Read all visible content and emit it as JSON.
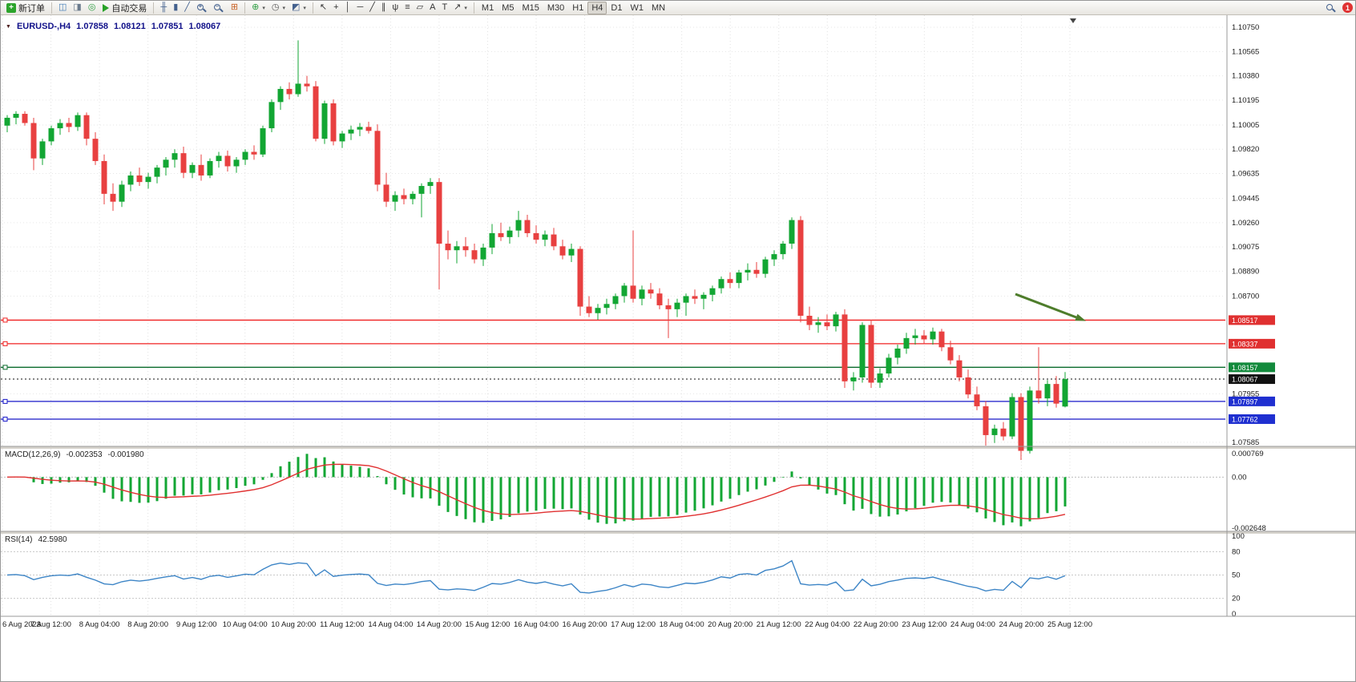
{
  "toolbar": {
    "new_order": "新订单",
    "autotrade": "自动交易",
    "timeframes": [
      "M1",
      "M5",
      "M15",
      "M30",
      "H1",
      "H4",
      "D1",
      "W1",
      "MN"
    ],
    "active_timeframe": "H4",
    "left_icons": [
      {
        "name": "new-chart-icon",
        "glyph": "◫",
        "color": "#3c78b4"
      },
      {
        "name": "profiles-icon",
        "glyph": "◨",
        "color": "#6b7b8d"
      },
      {
        "name": "refresh-icon",
        "glyph": "◎",
        "color": "#2f9e44"
      }
    ],
    "chart_type_icons": [
      {
        "name": "ohlc-bars-icon",
        "glyph": "╫",
        "color": "#44618e"
      },
      {
        "name": "candlestick-icon",
        "glyph": "▮",
        "color": "#44618e"
      },
      {
        "name": "line-chart-icon",
        "glyph": "╱",
        "color": "#44618e"
      }
    ],
    "tile_icon": {
      "name": "tile-windows-icon",
      "glyph": "⊞",
      "color": "#c9652a"
    },
    "dropdown_icons": [
      {
        "name": "indicators-icon",
        "glyph": "⊕",
        "color": "#2f9e44",
        "caret": true
      },
      {
        "name": "clock-icon",
        "glyph": "◷",
        "color": "#555555",
        "caret": true
      },
      {
        "name": "templates-icon",
        "glyph": "◩",
        "color": "#44618e",
        "caret": true
      }
    ],
    "drawing_icons": [
      {
        "name": "cursor-icon",
        "glyph": "↖",
        "color": "#333333"
      },
      {
        "name": "crosshair-icon",
        "glyph": "+",
        "color": "#333333"
      },
      {
        "name": "vertical-line-icon",
        "glyph": "│",
        "color": "#333333"
      },
      {
        "name": "horizontal-line-icon",
        "glyph": "─",
        "color": "#333333"
      },
      {
        "name": "trendline-icon",
        "glyph": "╱",
        "color": "#333333"
      },
      {
        "name": "channel-icon",
        "glyph": "∥",
        "color": "#333333"
      },
      {
        "name": "pitchfork-icon",
        "glyph": "ψ",
        "color": "#333333"
      },
      {
        "name": "fibonacci-icon",
        "glyph": "≡",
        "color": "#333333"
      },
      {
        "name": "shapes-icon",
        "glyph": "▱",
        "color": "#333333"
      },
      {
        "name": "text-icon",
        "glyph": "A",
        "color": "#333333"
      },
      {
        "name": "label-icon",
        "glyph": "T",
        "color": "#333333"
      },
      {
        "name": "arrows-icon",
        "glyph": "↗",
        "color": "#333333",
        "caret": true
      }
    ],
    "notification_count": "1"
  },
  "chart": {
    "symbol_marker": "▼",
    "symbol": "EURUSD-,H4",
    "open": "1.07858",
    "high": "1.08121",
    "low": "1.07851",
    "close": "1.08067"
  },
  "price_axis": {
    "labels": [
      "1.10750",
      "1.10565",
      "1.10380",
      "1.10195",
      "1.10005",
      "1.09820",
      "1.09635",
      "1.09445",
      "1.09260",
      "1.09075",
      "1.08890",
      "1.08700",
      "1.07955",
      "1.07585"
    ]
  },
  "levels": [
    {
      "price": 1.08517,
      "label": "1.08517",
      "color": "#f02020",
      "tag_bg": "#e03030",
      "style": "solid"
    },
    {
      "price": 1.08337,
      "label": "1.08337",
      "color": "#f02020",
      "tag_bg": "#e03030",
      "style": "solid"
    },
    {
      "price": 1.08157,
      "label": "1.08157",
      "color": "#0b6b2d",
      "tag_bg": "#128a3c",
      "style": "solid"
    },
    {
      "price": 1.08067,
      "label": "1.08067",
      "color": "#111111",
      "tag_bg": "#111111",
      "style": "dotted",
      "is_price_line": true
    },
    {
      "price": 1.07897,
      "label": "1.07897",
      "color": "#1818c8",
      "tag_bg": "#1f2fd0",
      "style": "solid"
    },
    {
      "price": 1.07762,
      "label": "1.07762",
      "color": "#1818c8",
      "tag_bg": "#1f2fd0",
      "style": "solid"
    }
  ],
  "annotation_arrow": {
    "color": "#4e7d2b"
  },
  "macd": {
    "title": "MACD(12,26,9)",
    "value1": "-0.002353",
    "value2": "-0.001980",
    "axis_max": "0.000769",
    "axis_zero": "0.00",
    "axis_min": "-0.002648",
    "histogram_color": "#12a633",
    "signal_color": "#e03030"
  },
  "rsi": {
    "title": "RSI(14)",
    "value": "42.5980",
    "axis": [
      "100",
      "80",
      "50",
      "20",
      "0"
    ],
    "levels": [
      80,
      50,
      20
    ],
    "line_color": "#3d85c6"
  },
  "time_axis": [
    "6 Aug 2023",
    "7 Aug 12:00",
    "8 Aug 04:00",
    "8 Aug 20:00",
    "9 Aug 12:00",
    "10 Aug 04:00",
    "10 Aug 20:00",
    "11 Aug 12:00",
    "14 Aug 04:00",
    "14 Aug 20:00",
    "15 Aug 12:00",
    "16 Aug 04:00",
    "16 Aug 20:00",
    "17 Aug 12:00",
    "18 Aug 04:00",
    "20 Aug 20:00",
    "21 Aug 12:00",
    "22 Aug 04:00",
    "22 Aug 20:00",
    "23 Aug 12:00",
    "24 Aug 04:00",
    "24 Aug 20:00",
    "25 Aug 12:00"
  ],
  "chart_data": {
    "type": "candlestick",
    "symbol": "EURUSD",
    "timeframe": "H4",
    "up_color": "#12a633",
    "down_color": "#e84040",
    "price_range": {
      "max": 1.10842,
      "min": 1.07554
    },
    "current_ohlc": [
      1.07858,
      1.08121,
      1.07851,
      1.08067
    ],
    "candles": [
      [
        1.1,
        1.1008,
        1.0995,
        1.1006
      ],
      [
        1.1006,
        1.1011,
        1.1001,
        1.1009
      ],
      [
        1.1009,
        1.1011,
        1.1,
        1.1002
      ],
      [
        1.1002,
        1.1006,
        1.0966,
        1.0975
      ],
      [
        1.0975,
        1.099,
        1.097,
        1.0988
      ],
      [
        1.0988,
        1.1,
        1.0985,
        1.0998
      ],
      [
        1.0998,
        1.1005,
        1.0993,
        1.1002
      ],
      [
        1.1002,
        1.1006,
        1.0995,
        1.0999
      ],
      [
        1.0999,
        1.101,
        1.0996,
        1.1008
      ],
      [
        1.1008,
        1.101,
        1.0985,
        1.099
      ],
      [
        1.099,
        1.0995,
        1.097,
        1.0973
      ],
      [
        1.0973,
        1.0978,
        1.094,
        1.0948
      ],
      [
        1.0948,
        1.0956,
        1.0935,
        1.0942
      ],
      [
        1.0942,
        1.0958,
        1.0938,
        1.0955
      ],
      [
        1.0955,
        1.0965,
        1.095,
        1.0962
      ],
      [
        1.0962,
        1.0968,
        1.0954,
        1.0957
      ],
      [
        1.0957,
        1.0964,
        1.0952,
        1.0961
      ],
      [
        1.0961,
        1.097,
        1.0956,
        1.0968
      ],
      [
        1.0968,
        1.0976,
        1.0962,
        1.0974
      ],
      [
        1.0974,
        1.0982,
        1.0968,
        1.0979
      ],
      [
        1.0979,
        1.0984,
        1.096,
        1.0964
      ],
      [
        1.0964,
        1.0972,
        1.096,
        1.097
      ],
      [
        1.097,
        1.0978,
        1.0958,
        1.0962
      ],
      [
        1.0962,
        1.0975,
        1.096,
        1.0973
      ],
      [
        1.0973,
        1.098,
        1.0968,
        1.0977
      ],
      [
        1.0977,
        1.0981,
        1.0965,
        1.0969
      ],
      [
        1.0969,
        1.0976,
        1.0964,
        1.0974
      ],
      [
        1.0974,
        1.0982,
        1.097,
        1.098
      ],
      [
        1.098,
        1.0985,
        1.0974,
        1.0978
      ],
      [
        1.0978,
        1.1,
        1.0976,
        1.0998
      ],
      [
        1.0998,
        1.102,
        1.0995,
        1.1018
      ],
      [
        1.1018,
        1.103,
        1.1012,
        1.1028
      ],
      [
        1.1028,
        1.1033,
        1.102,
        1.1024
      ],
      [
        1.1024,
        1.1065,
        1.1022,
        1.1032
      ],
      [
        1.1032,
        1.1038,
        1.1026,
        1.103
      ],
      [
        1.103,
        1.1034,
        1.0988,
        1.099
      ],
      [
        1.099,
        1.1019,
        1.0986,
        1.1017
      ],
      [
        1.1017,
        1.102,
        1.0985,
        1.0988
      ],
      [
        1.0988,
        1.0996,
        1.0983,
        1.0994
      ],
      [
        1.0994,
        1.1,
        1.0989,
        1.0997
      ],
      [
        1.0997,
        1.1002,
        1.0992,
        1.0999
      ],
      [
        1.0999,
        1.1003,
        1.0994,
        1.0996
      ],
      [
        1.0996,
        1.1001,
        1.095,
        1.0955
      ],
      [
        1.0955,
        1.0964,
        1.0938,
        1.0942
      ],
      [
        1.0942,
        1.095,
        1.0935,
        1.0947
      ],
      [
        1.0947,
        1.0952,
        1.094,
        1.0944
      ],
      [
        1.0944,
        1.095,
        1.094,
        1.0948
      ],
      [
        1.0948,
        1.0956,
        1.093,
        1.0954
      ],
      [
        1.0954,
        1.096,
        1.0948,
        1.0957
      ],
      [
        1.0957,
        1.096,
        1.0875,
        1.091
      ],
      [
        1.091,
        1.092,
        1.0898,
        1.0905
      ],
      [
        1.0905,
        1.0912,
        1.0895,
        1.0908
      ],
      [
        1.0908,
        1.0915,
        1.09,
        1.0905
      ],
      [
        1.0905,
        1.091,
        1.0895,
        1.0898
      ],
      [
        1.0898,
        1.091,
        1.0893,
        1.0907
      ],
      [
        1.0907,
        1.0925,
        1.0902,
        1.0918
      ],
      [
        1.0918,
        1.0926,
        1.0912,
        1.0915
      ],
      [
        1.0915,
        1.0923,
        1.091,
        1.092
      ],
      [
        1.092,
        1.0935,
        1.0915,
        1.0928
      ],
      [
        1.0928,
        1.0932,
        1.0915,
        1.0918
      ],
      [
        1.0918,
        1.0924,
        1.091,
        1.0913
      ],
      [
        1.0913,
        1.092,
        1.0908,
        1.0917
      ],
      [
        1.0917,
        1.0922,
        1.0905,
        1.0908
      ],
      [
        1.0908,
        1.0913,
        1.0898,
        1.0901
      ],
      [
        1.0901,
        1.091,
        1.0896,
        1.0906
      ],
      [
        1.0906,
        1.0908,
        1.0855,
        1.0862
      ],
      [
        1.0862,
        1.087,
        1.0854,
        1.0857
      ],
      [
        1.0857,
        1.0864,
        1.0852,
        1.0861
      ],
      [
        1.0861,
        1.0868,
        1.0856,
        1.0864
      ],
      [
        1.0864,
        1.0872,
        1.086,
        1.087
      ],
      [
        1.087,
        1.088,
        1.0865,
        1.0878
      ],
      [
        1.0878,
        1.092,
        1.0865,
        1.0868
      ],
      [
        1.0868,
        1.0878,
        1.0863,
        1.0875
      ],
      [
        1.0875,
        1.088,
        1.0868,
        1.0872
      ],
      [
        1.0872,
        1.0876,
        1.086,
        1.0863
      ],
      [
        1.0863,
        1.0868,
        1.0838,
        1.086
      ],
      [
        1.086,
        1.0868,
        1.0854,
        1.0865
      ],
      [
        1.0865,
        1.0872,
        1.0855,
        1.087
      ],
      [
        1.087,
        1.0875,
        1.0864,
        1.0868
      ],
      [
        1.0868,
        1.0873,
        1.086,
        1.0871
      ],
      [
        1.0871,
        1.0878,
        1.0866,
        1.0876
      ],
      [
        1.0876,
        1.0885,
        1.0872,
        1.0883
      ],
      [
        1.0883,
        1.0888,
        1.0876,
        1.088
      ],
      [
        1.088,
        1.089,
        1.0876,
        1.0888
      ],
      [
        1.0888,
        1.0895,
        1.0882,
        1.089
      ],
      [
        1.089,
        1.0896,
        1.0884,
        1.0887
      ],
      [
        1.0887,
        1.09,
        1.0884,
        1.0898
      ],
      [
        1.0898,
        1.0905,
        1.0893,
        1.0902
      ],
      [
        1.0902,
        1.0912,
        1.0898,
        1.091
      ],
      [
        1.091,
        1.093,
        1.0906,
        1.0928
      ],
      [
        1.0928,
        1.0931,
        1.085,
        1.0855
      ],
      [
        1.0855,
        1.0862,
        1.0844,
        1.0848
      ],
      [
        1.0848,
        1.0854,
        1.0842,
        1.085
      ],
      [
        1.085,
        1.0856,
        1.0844,
        1.0847
      ],
      [
        1.0847,
        1.0858,
        1.0843,
        1.0856
      ],
      [
        1.0856,
        1.086,
        1.08,
        1.0805
      ],
      [
        1.0805,
        1.0812,
        1.0798,
        1.0808
      ],
      [
        1.0808,
        1.085,
        1.0804,
        1.0848
      ],
      [
        1.0848,
        1.0852,
        1.08,
        1.0804
      ],
      [
        1.0804,
        1.0815,
        1.08,
        1.0811
      ],
      [
        1.0811,
        1.0826,
        1.0808,
        1.0823
      ],
      [
        1.0823,
        1.0833,
        1.0818,
        1.083
      ],
      [
        1.083,
        1.0842,
        1.0826,
        1.0838
      ],
      [
        1.0838,
        1.0845,
        1.0833,
        1.084
      ],
      [
        1.084,
        1.0844,
        1.0834,
        1.0837
      ],
      [
        1.0837,
        1.0846,
        1.0833,
        1.0843
      ],
      [
        1.0843,
        1.0845,
        1.0828,
        1.0831
      ],
      [
        1.0831,
        1.0836,
        1.0818,
        1.0821
      ],
      [
        1.0821,
        1.0825,
        1.0805,
        1.0808
      ],
      [
        1.0808,
        1.0814,
        1.0792,
        1.0795
      ],
      [
        1.0795,
        1.0801,
        1.0783,
        1.0786
      ],
      [
        1.0786,
        1.079,
        1.0756,
        1.0764
      ],
      [
        1.0764,
        1.0772,
        1.0758,
        1.0769
      ],
      [
        1.0769,
        1.0774,
        1.076,
        1.0763
      ],
      [
        1.0763,
        1.0796,
        1.0761,
        1.0793
      ],
      [
        1.0793,
        1.0796,
        1.0745,
        1.0752
      ],
      [
        1.0752,
        1.0801,
        1.075,
        1.0798
      ],
      [
        1.0798,
        1.0831,
        1.0788,
        1.0792
      ],
      [
        1.0792,
        1.0806,
        1.0786,
        1.0803
      ],
      [
        1.0803,
        1.0809,
        1.0785,
        1.0788
      ],
      [
        1.07858,
        1.08121,
        1.07851,
        1.08067
      ]
    ]
  }
}
